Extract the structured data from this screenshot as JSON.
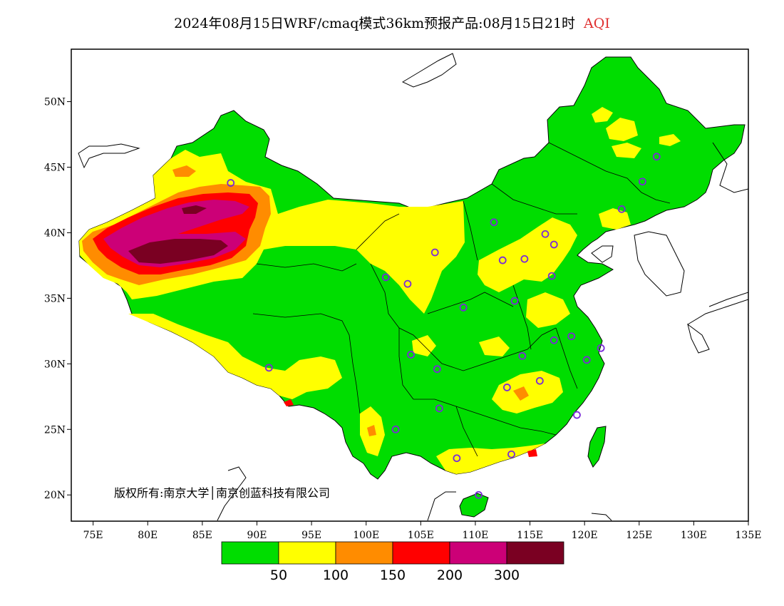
{
  "title": {
    "main": "2024年08月15日WRF/cmaq模式36km预报产品:08月15日21时",
    "variable": "AQI",
    "variable_color": "#e03030"
  },
  "map": {
    "lon_range": [
      73,
      135
    ],
    "lat_range": [
      18,
      54
    ],
    "lon_ticks": [
      "75E",
      "80E",
      "85E",
      "90E",
      "95E",
      "100E",
      "105E",
      "110E",
      "115E",
      "120E",
      "125E",
      "130E",
      "135E"
    ],
    "lat_ticks": [
      "50N",
      "45N",
      "40N",
      "35N",
      "30N",
      "25N",
      "20N"
    ],
    "copyright": "版权所有:南京大学│南京创蓝科技有限公司"
  },
  "legend": {
    "colors": [
      "#00dd00",
      "#ffff00",
      "#ff8c00",
      "#ff0000",
      "#cc0077",
      "#7a0022"
    ],
    "labels": [
      "50",
      "100",
      "150",
      "200",
      "300"
    ]
  },
  "stations": [
    [
      87.6,
      43.8
    ],
    [
      91.1,
      29.7
    ],
    [
      101.8,
      36.6
    ],
    [
      103.8,
      36.1
    ],
    [
      106.3,
      38.5
    ],
    [
      111.7,
      40.8
    ],
    [
      104.1,
      30.7
    ],
    [
      106.5,
      29.6
    ],
    [
      106.7,
      26.6
    ],
    [
      102.7,
      25.0
    ],
    [
      108.3,
      22.8
    ],
    [
      110.3,
      20.0
    ],
    [
      113.3,
      23.1
    ],
    [
      112.9,
      28.2
    ],
    [
      115.9,
      28.7
    ],
    [
      114.3,
      30.6
    ],
    [
      113.6,
      34.8
    ],
    [
      117.2,
      31.8
    ],
    [
      118.8,
      32.1
    ],
    [
      120.2,
      30.3
    ],
    [
      121.5,
      31.2
    ],
    [
      119.3,
      26.1
    ],
    [
      108.9,
      34.3
    ],
    [
      112.5,
      37.9
    ],
    [
      114.5,
      38.0
    ],
    [
      116.4,
      39.9
    ],
    [
      117.2,
      39.1
    ],
    [
      117.0,
      36.7
    ],
    [
      123.4,
      41.8
    ],
    [
      125.3,
      43.9
    ],
    [
      126.6,
      45.8
    ]
  ]
}
